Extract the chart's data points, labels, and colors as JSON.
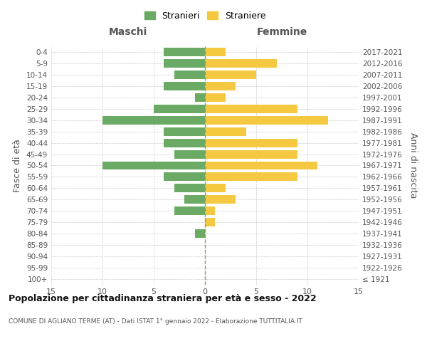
{
  "age_groups": [
    "100+",
    "95-99",
    "90-94",
    "85-89",
    "80-84",
    "75-79",
    "70-74",
    "65-69",
    "60-64",
    "55-59",
    "50-54",
    "45-49",
    "40-44",
    "35-39",
    "30-34",
    "25-29",
    "20-24",
    "15-19",
    "10-14",
    "5-9",
    "0-4"
  ],
  "birth_years": [
    "≤ 1921",
    "1922-1926",
    "1927-1931",
    "1932-1936",
    "1937-1941",
    "1942-1946",
    "1947-1951",
    "1952-1956",
    "1957-1961",
    "1962-1966",
    "1967-1971",
    "1972-1976",
    "1977-1981",
    "1982-1986",
    "1987-1991",
    "1992-1996",
    "1997-2001",
    "2002-2006",
    "2007-2011",
    "2012-2016",
    "2017-2021"
  ],
  "males": [
    0,
    0,
    0,
    0,
    1,
    0,
    3,
    2,
    3,
    4,
    10,
    3,
    4,
    4,
    10,
    5,
    1,
    4,
    3,
    4,
    4
  ],
  "females": [
    0,
    0,
    0,
    0,
    0,
    1,
    1,
    3,
    2,
    9,
    11,
    9,
    9,
    4,
    12,
    9,
    2,
    3,
    5,
    7,
    2
  ],
  "male_color": "#6aaa64",
  "female_color": "#f5c842",
  "title": "Popolazione per cittadinanza straniera per età e sesso - 2022",
  "subtitle": "COMUNE DI AGLIANO TERME (AT) - Dati ISTAT 1° gennaio 2022 - Elaborazione TUTTITALIA.IT",
  "xlabel_left": "Maschi",
  "xlabel_right": "Femmine",
  "ylabel_left": "Fasce di età",
  "ylabel_right": "Anni di nascita",
  "legend_male": "Stranieri",
  "legend_female": "Straniere",
  "xlim": 15,
  "background_color": "#ffffff",
  "grid_color": "#cccccc",
  "dashed_line_color": "#999966"
}
